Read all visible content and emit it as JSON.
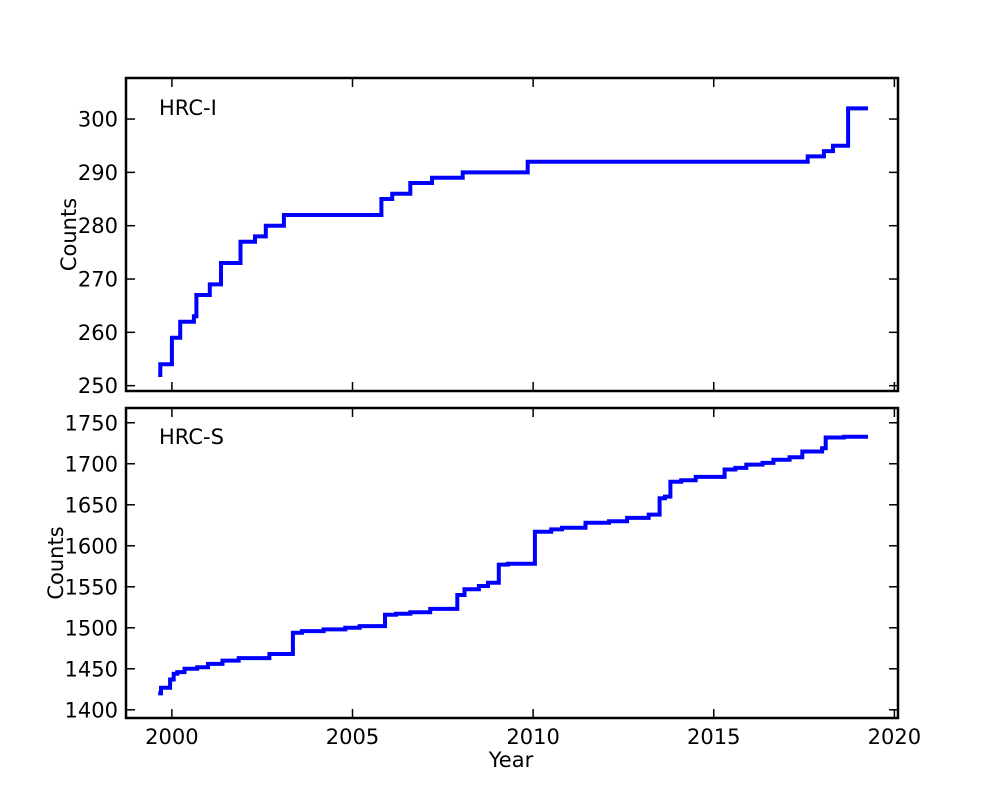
{
  "figure": {
    "background": "#ffffff",
    "axes_color": "#000000",
    "line_color": "#0000ff",
    "xlabel": "Year",
    "x_ticks": [
      2000,
      2005,
      2010,
      2015,
      2020
    ],
    "xlim": [
      1998.73,
      2020.1
    ]
  },
  "chart_data": [
    {
      "type": "line",
      "step": "post",
      "annotation": "HRC-I",
      "ylabel": "Counts",
      "yticks": [
        250,
        260,
        270,
        280,
        290,
        300
      ],
      "ylim": [
        249.0,
        307.7
      ],
      "show_xtick_labels": false,
      "grid": false,
      "legend": "none",
      "series": [
        {
          "name": "HRC-I",
          "color": "#0000ff",
          "points": [
            [
              1999.62,
              252
            ],
            [
              1999.68,
              254
            ],
            [
              2000.0,
              259
            ],
            [
              2000.23,
              262
            ],
            [
              2000.61,
              263
            ],
            [
              2000.68,
              267
            ],
            [
              2001.05,
              269
            ],
            [
              2001.36,
              273
            ],
            [
              2001.9,
              277
            ],
            [
              2002.3,
              278
            ],
            [
              2002.6,
              280
            ],
            [
              2003.1,
              282
            ],
            [
              2005.8,
              285
            ],
            [
              2006.1,
              286
            ],
            [
              2006.6,
              288
            ],
            [
              2007.2,
              289
            ],
            [
              2008.05,
              290
            ],
            [
              2009.85,
              292
            ],
            [
              2017.6,
              293
            ],
            [
              2018.05,
              294
            ],
            [
              2018.3,
              295
            ],
            [
              2018.72,
              302
            ],
            [
              2019.27,
              302
            ]
          ]
        }
      ]
    },
    {
      "type": "line",
      "step": "post",
      "annotation": "HRC-S",
      "ylabel": "Counts",
      "yticks": [
        1400,
        1450,
        1500,
        1550,
        1600,
        1650,
        1700,
        1750
      ],
      "ylim": [
        1390,
        1768
      ],
      "show_xtick_labels": true,
      "grid": false,
      "legend": "none",
      "series": [
        {
          "name": "HRC-S",
          "color": "#0000ff",
          "points": [
            [
              1999.62,
              1420
            ],
            [
              1999.7,
              1427
            ],
            [
              1999.95,
              1437
            ],
            [
              2000.05,
              1444
            ],
            [
              2000.15,
              1446
            ],
            [
              2000.35,
              1450
            ],
            [
              2000.7,
              1452
            ],
            [
              2001.0,
              1456
            ],
            [
              2001.4,
              1460
            ],
            [
              2001.85,
              1463
            ],
            [
              2002.7,
              1468
            ],
            [
              2003.35,
              1494
            ],
            [
              2003.6,
              1496
            ],
            [
              2004.2,
              1498
            ],
            [
              2004.8,
              1500
            ],
            [
              2005.2,
              1502
            ],
            [
              2005.9,
              1516
            ],
            [
              2006.2,
              1517
            ],
            [
              2006.6,
              1519
            ],
            [
              2007.15,
              1523
            ],
            [
              2007.9,
              1540
            ],
            [
              2008.1,
              1547
            ],
            [
              2008.5,
              1551
            ],
            [
              2008.75,
              1555
            ],
            [
              2009.05,
              1577
            ],
            [
              2009.3,
              1578
            ],
            [
              2010.05,
              1617
            ],
            [
              2010.5,
              1620
            ],
            [
              2010.8,
              1622
            ],
            [
              2011.45,
              1628
            ],
            [
              2012.1,
              1630
            ],
            [
              2012.6,
              1634
            ],
            [
              2013.2,
              1638
            ],
            [
              2013.5,
              1658
            ],
            [
              2013.65,
              1660
            ],
            [
              2013.8,
              1678
            ],
            [
              2014.1,
              1680
            ],
            [
              2014.5,
              1684
            ],
            [
              2015.3,
              1693
            ],
            [
              2015.6,
              1695
            ],
            [
              2015.9,
              1699
            ],
            [
              2016.35,
              1701
            ],
            [
              2016.65,
              1705
            ],
            [
              2017.1,
              1708
            ],
            [
              2017.45,
              1715
            ],
            [
              2018.0,
              1719
            ],
            [
              2018.1,
              1732
            ],
            [
              2018.6,
              1733
            ],
            [
              2019.27,
              1733
            ]
          ]
        }
      ]
    }
  ]
}
